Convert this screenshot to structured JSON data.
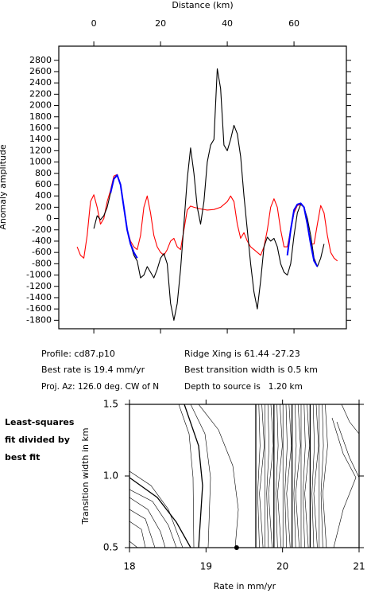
{
  "chart_data": [
    {
      "type": "line",
      "xlabel": "Distance (km)",
      "ylabel": "Anomaly amplitude",
      "xlim": [
        -10.5,
        75.7
      ],
      "xticks": [
        0,
        20,
        40,
        60
      ],
      "ylim": [
        -1950,
        3050
      ],
      "yticks": [
        -1800,
        -1600,
        -1400,
        -1200,
        -1000,
        -800,
        -600,
        -400,
        -200,
        0,
        200,
        400,
        600,
        800,
        1000,
        1200,
        1400,
        1600,
        1800,
        2000,
        2200,
        2400,
        2600,
        2800
      ],
      "series": [
        {
          "color": "#ff0000",
          "x": [
            -5,
            -4,
            -3,
            -2,
            -1,
            0,
            1,
            2,
            3,
            4,
            5,
            6,
            7,
            8,
            9,
            10,
            11,
            12,
            13,
            14,
            15,
            16,
            17,
            18,
            19,
            20,
            21,
            22,
            23,
            24,
            25,
            26,
            27,
            28,
            29,
            30,
            32,
            34,
            36,
            38,
            40,
            41,
            42,
            43,
            44,
            45,
            46,
            47,
            48,
            49,
            50,
            51,
            52,
            53,
            54,
            55,
            56,
            57,
            58,
            59,
            60,
            61,
            62,
            63,
            64,
            65,
            66,
            67,
            68,
            69,
            70,
            71,
            72,
            73
          ],
          "values": [
            -500,
            -650,
            -700,
            -300,
            300,
            420,
            200,
            -100,
            0,
            300,
            500,
            750,
            780,
            600,
            200,
            -200,
            -400,
            -500,
            -550,
            -300,
            200,
            400,
            100,
            -300,
            -500,
            -600,
            -650,
            -550,
            -400,
            -350,
            -500,
            -550,
            -200,
            150,
            220,
            200,
            170,
            150,
            160,
            200,
            300,
            400,
            300,
            -100,
            -350,
            -250,
            -400,
            -500,
            -550,
            -600,
            -650,
            -500,
            -200,
            200,
            350,
            200,
            -200,
            -500,
            -500,
            -200,
            100,
            230,
            250,
            200,
            -100,
            -450,
            -450,
            -100,
            230,
            100,
            -300,
            -600,
            -700,
            -750
          ]
        },
        {
          "color": "#000000",
          "x": [
            0,
            1,
            2,
            3,
            4,
            5,
            6,
            7,
            8,
            9,
            10,
            11,
            12,
            13,
            14,
            15,
            16,
            17,
            18,
            19,
            20,
            21,
            22,
            23,
            24,
            25,
            26,
            27,
            28,
            29,
            30,
            31,
            32,
            33,
            34,
            35,
            36,
            37,
            38,
            39,
            40,
            41,
            42,
            43,
            44,
            45,
            46,
            47,
            48,
            49,
            50,
            51,
            52,
            53,
            54,
            55,
            56,
            57,
            58,
            59,
            60,
            61,
            62,
            63,
            64,
            65,
            66,
            67,
            68,
            69
          ],
          "values": [
            -180,
            50,
            -20,
            50,
            200,
            450,
            700,
            760,
            600,
            200,
            -200,
            -450,
            -650,
            -750,
            -1050,
            -1000,
            -850,
            -950,
            -1050,
            -900,
            -700,
            -620,
            -800,
            -1500,
            -1800,
            -1500,
            -900,
            -100,
            700,
            1250,
            800,
            200,
            -100,
            300,
            1000,
            1300,
            1400,
            2650,
            2300,
            1300,
            1200,
            1400,
            1650,
            1500,
            1100,
            400,
            -200,
            -800,
            -1300,
            -1600,
            -1100,
            -500,
            -330,
            -400,
            -350,
            -500,
            -800,
            -950,
            -1000,
            -800,
            -300,
            100,
            250,
            200,
            0,
            -300,
            -700,
            -850,
            -700,
            -450
          ]
        },
        {
          "color": "#0000ff",
          "x": [
            5,
            6,
            7,
            8,
            9,
            10,
            11,
            12,
            13
          ],
          "values": [
            450,
            700,
            770,
            600,
            200,
            -200,
            -450,
            -600,
            -700
          ]
        },
        {
          "color": "#0000ff",
          "x": [
            58,
            59,
            60,
            61,
            62,
            63,
            64,
            65,
            66,
            67
          ],
          "values": [
            -650,
            -200,
            150,
            250,
            270,
            200,
            -100,
            -450,
            -750,
            -850
          ]
        }
      ]
    },
    {
      "type": "contour",
      "xlabel": "Rate in mm/yr",
      "ylabel": "Transition width in km",
      "note": [
        "Least-squares",
        "fit divided by",
        "best fit"
      ],
      "xlim": [
        18,
        21
      ],
      "xticks": [
        18,
        19,
        20,
        21
      ],
      "ylim": [
        0.5,
        1.5
      ],
      "yticks": [
        {
          "value": 0.5,
          "label": "0.5"
        },
        {
          "value": 1,
          "label": "1.0"
        },
        {
          "value": 1.5,
          "label": "1.5"
        }
      ],
      "best": {
        "x": 19.4,
        "y": 0.5
      }
    }
  ],
  "info": {
    "profile": "Profile: cd87.p10",
    "ridge": "Ridge Xing is 61.44 -27.23",
    "rate": "Best rate is 19.4 mm/yr",
    "width": "Best transition width is 0.5 km",
    "azimuth": "Proj. Az: 126.0 deg. CW of N",
    "depth": "Depth to source is   1.20 km"
  }
}
